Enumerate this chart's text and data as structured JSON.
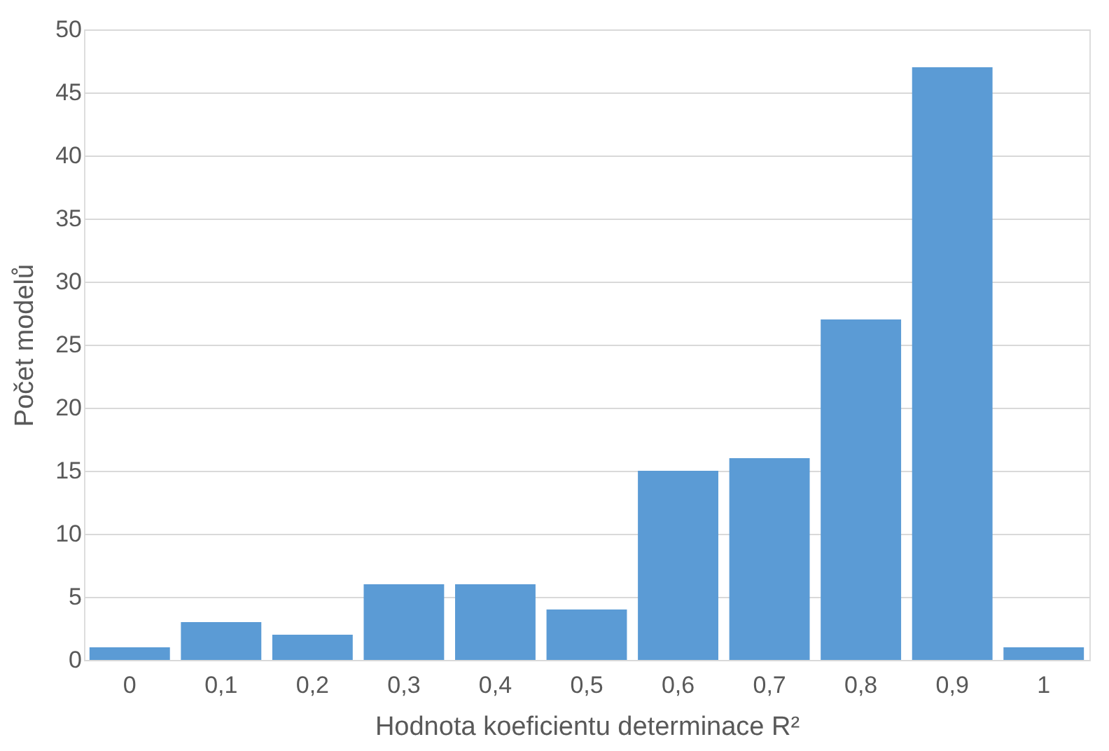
{
  "chart_data": {
    "type": "bar",
    "xlabel": "Hodnota koeficientu determinace R²",
    "ylabel": "Počet modelů",
    "categories": [
      "0",
      "0,1",
      "0,2",
      "0,3",
      "0,4",
      "0,5",
      "0,6",
      "0,7",
      "0,8",
      "0,9",
      "1"
    ],
    "values": [
      1,
      3,
      2,
      6,
      6,
      4,
      15,
      16,
      27,
      47,
      1
    ],
    "color": "#5b9bd5",
    "ylim": [
      0,
      50
    ],
    "yticks": [
      0,
      5,
      10,
      15,
      20,
      25,
      30,
      35,
      40,
      45,
      50
    ],
    "grid": "y"
  }
}
